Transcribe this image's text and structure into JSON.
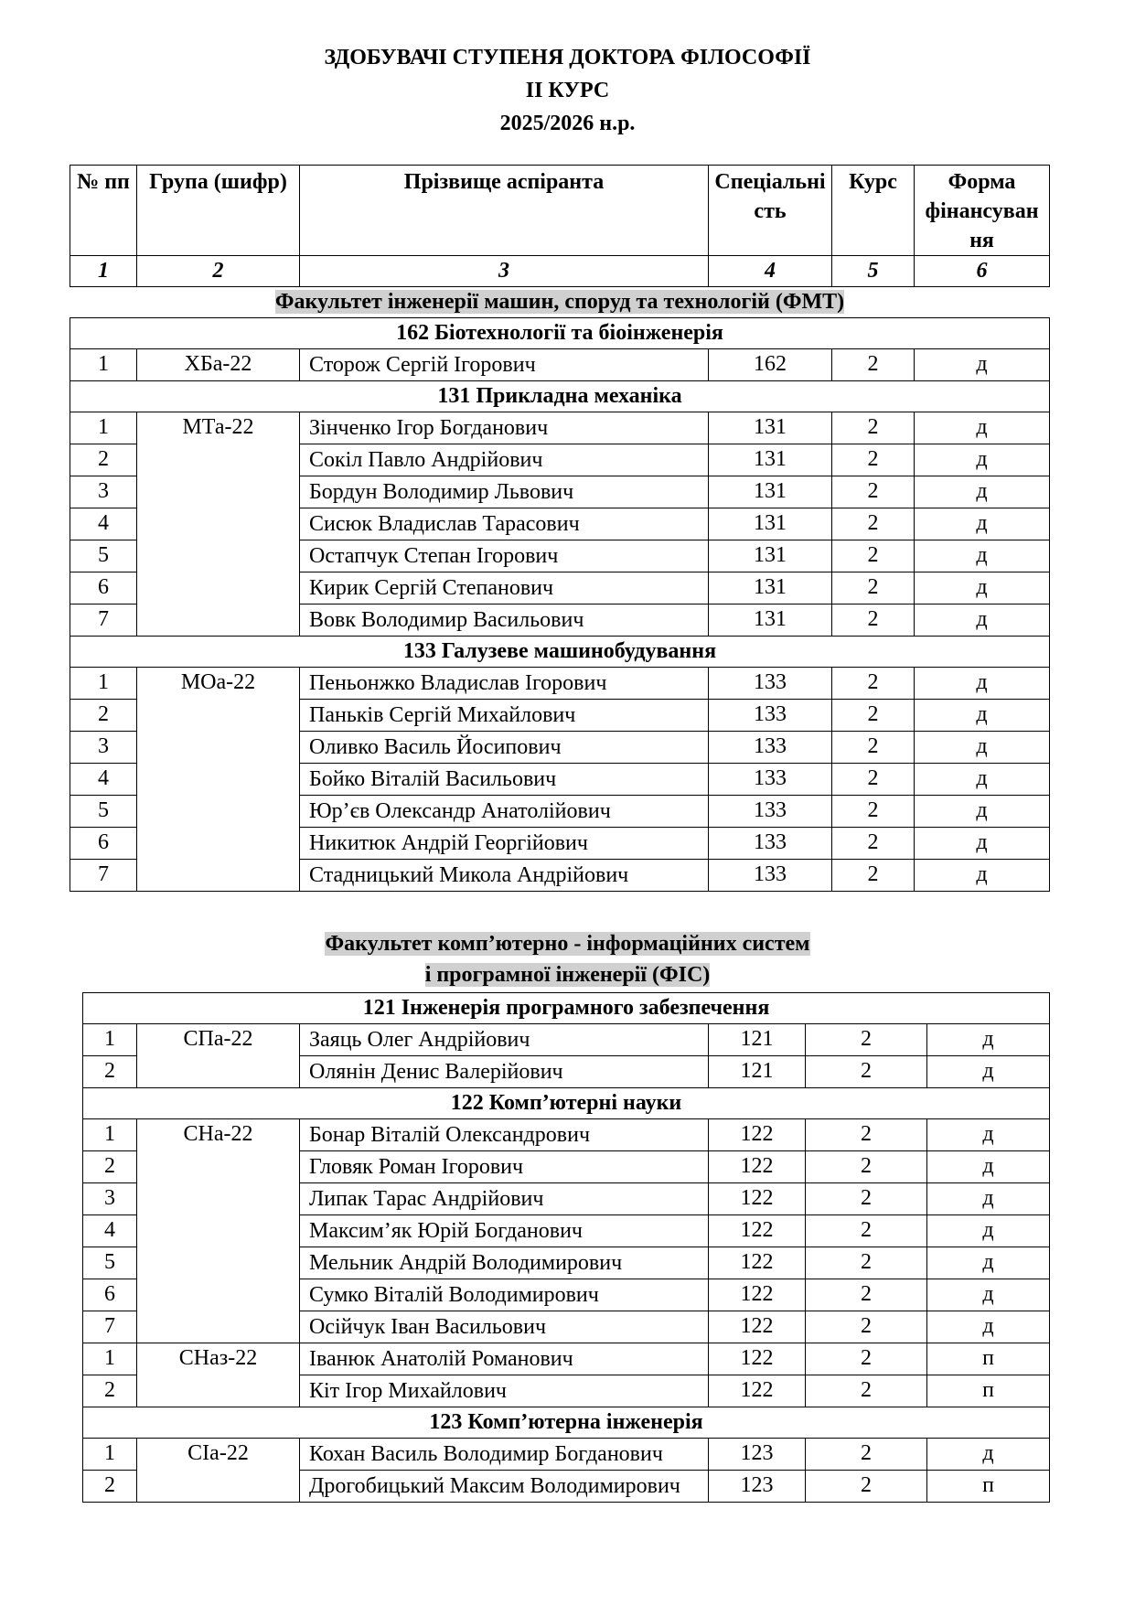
{
  "header": {
    "title_lines": [
      "ЗДОБУВАЧІ СТУПЕНЯ ДОКТОРА ФІЛОСОФІЇ",
      "ІІ КУРС",
      "2025/2026 н.р."
    ]
  },
  "table": {
    "columns": [
      "№ пп",
      "Група (шифр)",
      "Прізвище аспіранта",
      "Спеціальність",
      "Курс",
      "Форма фінансування"
    ],
    "column_numbers": [
      "1",
      "2",
      "3",
      "4",
      "5",
      "6"
    ]
  },
  "faculties": [
    {
      "title_lines": [
        "Факультет інженерії машин, споруд та технологій (ФМТ)"
      ],
      "specialties": [
        {
          "title": "162 Біотехнології та біоінженерія",
          "groups": [
            {
              "group": "ХБа-22",
              "rows": [
                [
                  "1",
                  "Сторож Сергій Ігорович",
                  "162",
                  "2",
                  "д"
                ]
              ]
            }
          ]
        },
        {
          "title": "131 Прикладна механіка",
          "groups": [
            {
              "group": "МТа-22",
              "rows": [
                [
                  "1",
                  "Зінченко Ігор Богданович",
                  "131",
                  "2",
                  "д"
                ],
                [
                  "2",
                  "Сокіл Павло Андрійович",
                  "131",
                  "2",
                  "д"
                ],
                [
                  "3",
                  "Бордун Володимир Львович",
                  "131",
                  "2",
                  "д"
                ],
                [
                  "4",
                  "Сисюк Владислав Тарасович",
                  "131",
                  "2",
                  "д"
                ],
                [
                  "5",
                  "Остапчук Степан Ігорович",
                  "131",
                  "2",
                  "д"
                ],
                [
                  "6",
                  "Кирик Сергій Степанович",
                  "131",
                  "2",
                  "д"
                ],
                [
                  "7",
                  "Вовк Володимир Васильович",
                  "131",
                  "2",
                  "д"
                ]
              ]
            }
          ]
        },
        {
          "title": "133 Галузеве машинобудування",
          "groups": [
            {
              "group": "МОа-22",
              "rows": [
                [
                  "1",
                  "Пеньонжко Владислав Ігорович",
                  "133",
                  "2",
                  "д"
                ],
                [
                  "2",
                  "Паньків Сергій Михайлович",
                  "133",
                  "2",
                  "д"
                ],
                [
                  "3",
                  "Оливко Василь Йосипович",
                  "133",
                  "2",
                  "д"
                ],
                [
                  "4",
                  "Бойко Віталій Васильович",
                  "133",
                  "2",
                  "д"
                ],
                [
                  "5",
                  "Юр’єв Олександр Анатолійович",
                  "133",
                  "2",
                  "д"
                ],
                [
                  "6",
                  "Никитюк Андрій Георгійович",
                  "133",
                  "2",
                  "д"
                ],
                [
                  "7",
                  "Стадницький Микола Андрійович",
                  "133",
                  "2",
                  "д"
                ]
              ]
            }
          ]
        }
      ]
    },
    {
      "title_lines": [
        "Факультет комп’ютерно - інформаційних систем",
        "і програмної інженерії (ФІС)"
      ],
      "specialties": [
        {
          "title": "121 Інженерія програмного забезпечення",
          "groups": [
            {
              "group": "СПа-22",
              "rows": [
                [
                  "1",
                  "Заяць Олег Андрійович",
                  "121",
                  "2",
                  "д"
                ],
                [
                  "2",
                  "Олянін Денис Валерійович",
                  "121",
                  "2",
                  "д"
                ]
              ]
            }
          ]
        },
        {
          "title": "122 Комп’ютерні науки",
          "groups": [
            {
              "group": "СНа-22",
              "rows": [
                [
                  "1",
                  "Бонар Віталій Олександрович",
                  "122",
                  "2",
                  "д"
                ],
                [
                  "2",
                  "Гловяк Роман Ігорович",
                  "122",
                  "2",
                  "д"
                ],
                [
                  "3",
                  "Липак Тарас Андрійович",
                  "122",
                  "2",
                  "д"
                ],
                [
                  "4",
                  "Максим’як Юрій Богданович",
                  "122",
                  "2",
                  "д"
                ],
                [
                  "5",
                  "Мельник Андрій Володимирович",
                  "122",
                  "2",
                  "д"
                ],
                [
                  "6",
                  "Сумко Віталій Володимирович",
                  "122",
                  "2",
                  "д"
                ],
                [
                  "7",
                  "Осійчук Іван Васильович",
                  "122",
                  "2",
                  "д"
                ]
              ]
            },
            {
              "group": "СНаз-22",
              "rows": [
                [
                  "1",
                  "Іванюк Анатолій Романович",
                  "122",
                  "2",
                  "п"
                ],
                [
                  "2",
                  "Кіт Ігор Михайлович",
                  "122",
                  "2",
                  "п"
                ]
              ]
            }
          ]
        },
        {
          "title": "123 Комп’ютерна інженерія",
          "groups": [
            {
              "group": "СІа-22",
              "rows": [
                [
                  "1",
                  "Кохан Василь Володимир Богданович",
                  "123",
                  "2",
                  "д"
                ],
                [
                  "2",
                  "Дрогобицький Максим Володимирович",
                  "123",
                  "2",
                  "п"
                ]
              ]
            }
          ]
        }
      ]
    }
  ]
}
